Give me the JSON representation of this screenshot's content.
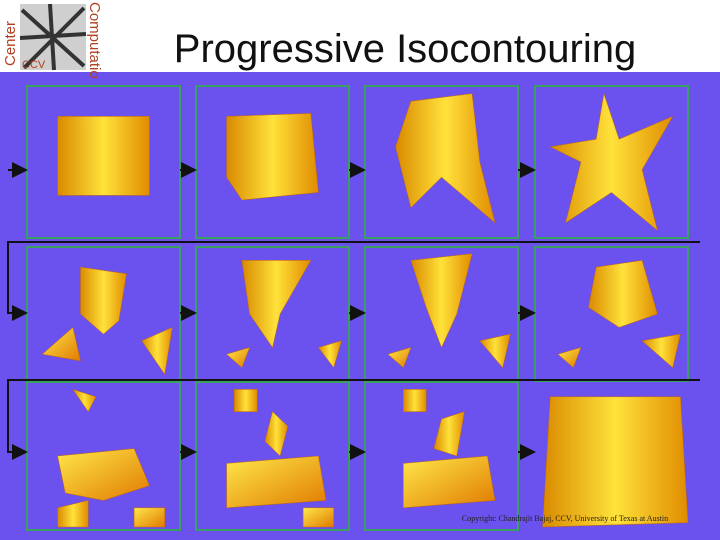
{
  "header": {
    "title": "Progressive Isocontouring",
    "logo": {
      "left": "Center",
      "right": "Computatio",
      "badge": "CCV"
    }
  },
  "footer": {
    "copyright": "Copyright: Chandrajit Bajaj, CCV, University of Texas at Austin"
  }
}
